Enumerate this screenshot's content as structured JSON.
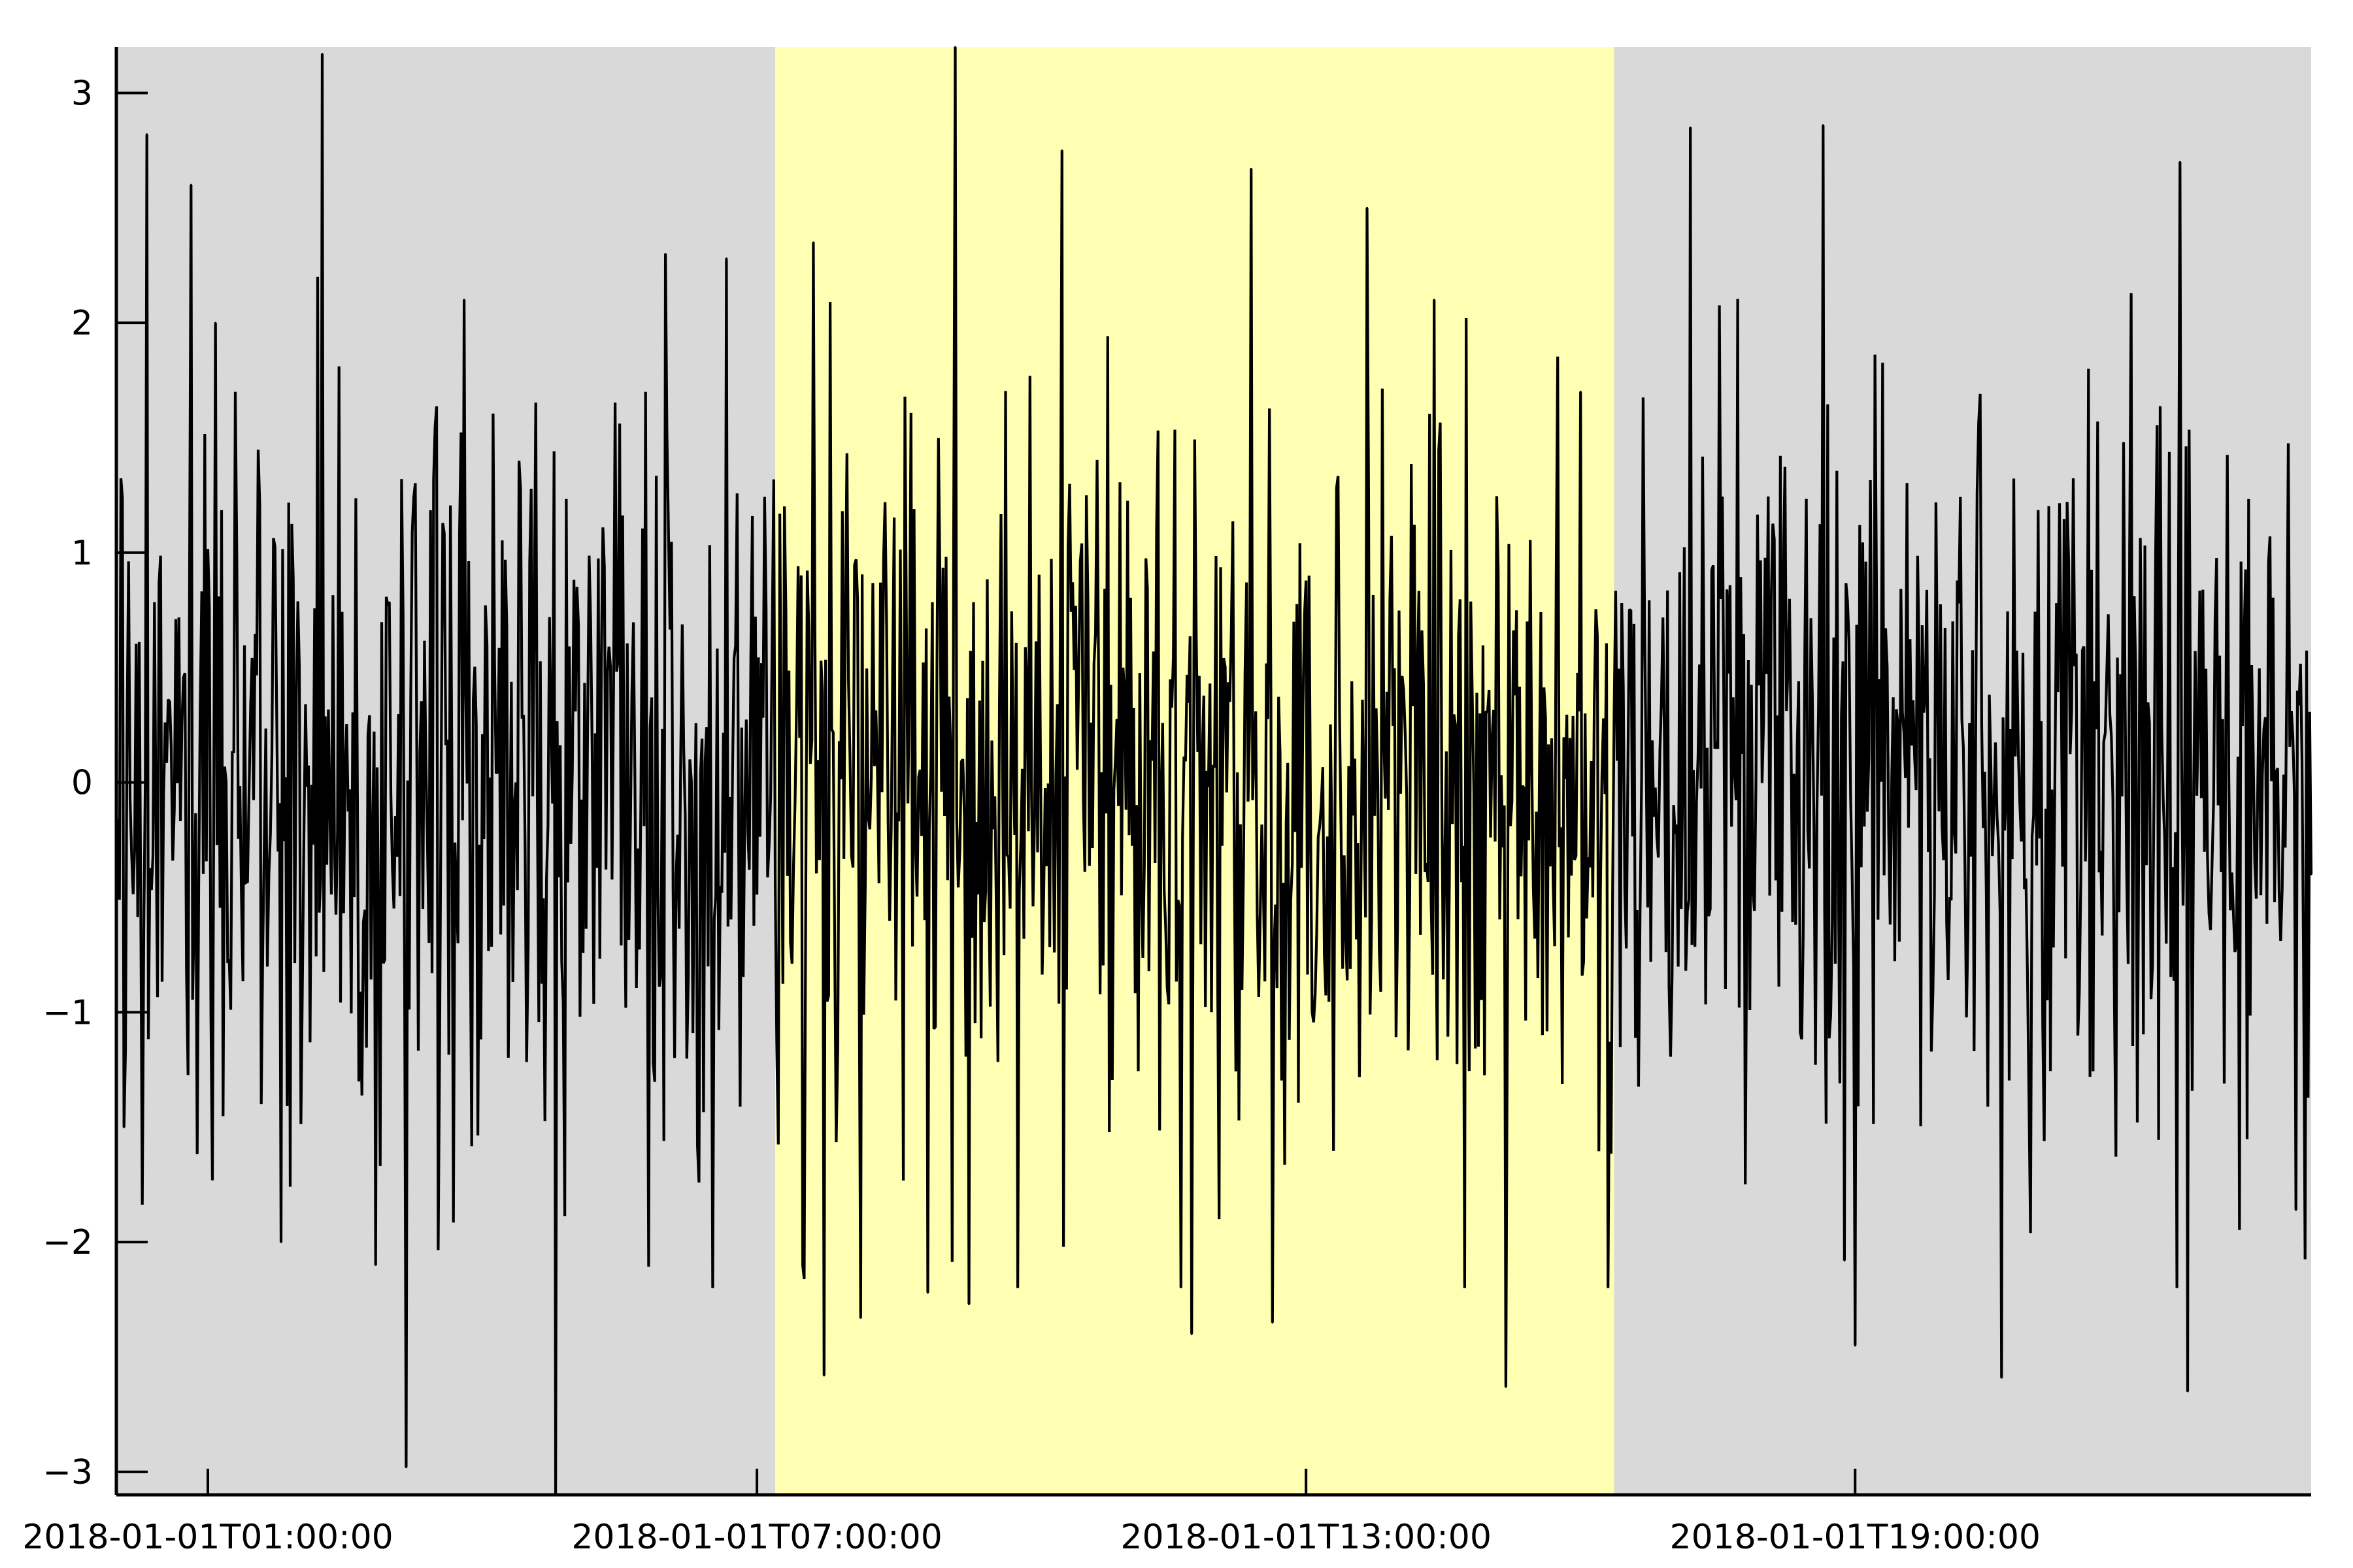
{
  "chart_data": {
    "type": "line",
    "title": "",
    "xlabel": "",
    "ylabel": "",
    "x_start": "2018-01-01T00:00:00",
    "x_end": "2018-01-01T23:59:00",
    "xlim": [
      "2018-01-01T00:00:00",
      "2018-01-01T23:59:00"
    ],
    "ylim": [
      -3.1,
      3.2
    ],
    "x_ticks": [
      {
        "value": "2018-01-01T01:00:00",
        "label": "2018-01-01T01:00:00"
      },
      {
        "value": "2018-01-01T07:00:00",
        "label": "2018-01-01T07:00:00"
      },
      {
        "value": "2018-01-01T13:00:00",
        "label": "2018-01-01T13:00:00"
      },
      {
        "value": "2018-01-01T19:00:00",
        "label": "2018-01-01T19:00:00"
      }
    ],
    "y_ticks": [
      {
        "value": 3,
        "label": "3"
      },
      {
        "value": 2,
        "label": "2"
      },
      {
        "value": 1,
        "label": "1"
      },
      {
        "value": 0,
        "label": "0"
      },
      {
        "value": -1,
        "label": "−1"
      },
      {
        "value": -2,
        "label": "−2"
      },
      {
        "value": -3,
        "label": "−3"
      }
    ],
    "shaded_regions": [
      {
        "start": "2018-01-01T00:00:00",
        "end": "2018-01-01T07:12:00",
        "color": "#d9d9d9"
      },
      {
        "start": "2018-01-01T07:12:00",
        "end": "2018-01-01T16:22:00",
        "color": "#ffffb3"
      },
      {
        "start": "2018-01-01T16:22:00",
        "end": "2018-01-01T23:59:00",
        "color": "#d9d9d9"
      }
    ],
    "grid": false,
    "legend": "none",
    "series": [
      {
        "color": "#000000",
        "description_of_values": "Approximately 1440 noisy values (one per minute), roughly standard normal; representative extremes read from the chart",
        "points": [
          {
            "x": "2018-01-01T00:00:00",
            "y": -0.3
          },
          {
            "x": "2018-01-01T00:05:00",
            "y": -1.5
          },
          {
            "x": "2018-01-01T00:20:00",
            "y": 2.82
          },
          {
            "x": "2018-01-01T00:49:00",
            "y": 2.6
          },
          {
            "x": "2018-01-01T01:05:00",
            "y": 2.0
          },
          {
            "x": "2018-01-01T01:48:00",
            "y": -2.0
          },
          {
            "x": "2018-01-01T02:15:00",
            "y": 3.17
          },
          {
            "x": "2018-01-01T02:50:00",
            "y": -2.1
          },
          {
            "x": "2018-01-01T03:10:00",
            "y": -2.98
          },
          {
            "x": "2018-01-01T03:48:00",
            "y": 2.1
          },
          {
            "x": "2018-01-01T04:48:00",
            "y": -3.1
          },
          {
            "x": "2018-01-01T06:00:00",
            "y": 2.3
          },
          {
            "x": "2018-01-01T06:40:00",
            "y": 2.28
          },
          {
            "x": "2018-01-01T07:30:00",
            "y": -2.1
          },
          {
            "x": "2018-01-01T07:37:00",
            "y": 2.35
          },
          {
            "x": "2018-01-01T07:44:00",
            "y": -2.58
          },
          {
            "x": "2018-01-01T08:08:00",
            "y": -2.33
          },
          {
            "x": "2018-01-01T08:52:00",
            "y": -2.22
          },
          {
            "x": "2018-01-01T09:10:00",
            "y": 3.2
          },
          {
            "x": "2018-01-01T09:19:00",
            "y": -2.27
          },
          {
            "x": "2018-01-01T10:20:00",
            "y": 2.75
          },
          {
            "x": "2018-01-01T11:45:00",
            "y": -2.4
          },
          {
            "x": "2018-01-01T12:24:00",
            "y": 2.67
          },
          {
            "x": "2018-01-01T12:38:00",
            "y": -2.35
          },
          {
            "x": "2018-01-01T13:40:00",
            "y": 2.5
          },
          {
            "x": "2018-01-01T14:24:00",
            "y": 2.1
          },
          {
            "x": "2018-01-01T15:11:00",
            "y": -2.63
          },
          {
            "x": "2018-01-01T16:00:00",
            "y": 1.7
          },
          {
            "x": "2018-01-01T17:12:00",
            "y": 2.85
          },
          {
            "x": "2018-01-01T18:39:00",
            "y": 2.86
          },
          {
            "x": "2018-01-01T18:53:00",
            "y": -2.08
          },
          {
            "x": "2018-01-01T19:00:00",
            "y": -2.45
          },
          {
            "x": "2018-01-01T20:36:00",
            "y": -2.59
          },
          {
            "x": "2018-01-01T22:38:00",
            "y": -2.65
          },
          {
            "x": "2018-01-01T22:33:00",
            "y": 2.7
          },
          {
            "x": "2018-01-01T23:49:00",
            "y": -1.86
          },
          {
            "x": "2018-01-01T23:59:00",
            "y": -0.4
          }
        ]
      }
    ]
  }
}
